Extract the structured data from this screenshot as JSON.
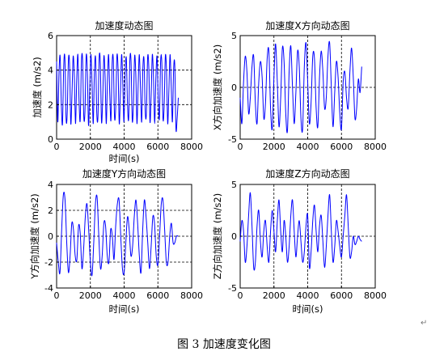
{
  "figure_caption": "图 3  加速度变化图",
  "paragraph_mark": "↵",
  "chart_data": [
    {
      "type": "line",
      "title": "加速度动态图",
      "xlabel": "时间(s)",
      "ylabel": "加速度 (m/s2)",
      "xlim": [
        0,
        8000
      ],
      "ylim": [
        0,
        6
      ],
      "xticks": [
        "0",
        "2000",
        "4000",
        "6000",
        "8000"
      ],
      "yticks": [
        "0",
        "2",
        "4",
        "6"
      ],
      "grid": "dashed, vertical at 2000/4000/6000, horizontal at 2/4",
      "line_color": "#0000ff",
      "series": [
        {
          "x": [
            0,
            70,
            140,
            210,
            280,
            350,
            420,
            490,
            560,
            630,
            700,
            770,
            840,
            910,
            980,
            1050,
            1120,
            1190,
            1260,
            1330,
            1400,
            1470,
            1540,
            1610,
            1680,
            1750,
            1820,
            1890,
            1960,
            2030,
            2100,
            2170,
            2240,
            2310,
            2380,
            2450,
            2520,
            2590,
            2660,
            2730,
            2800,
            2870,
            2940,
            3010,
            3080,
            3150,
            3220,
            3290,
            3360,
            3430,
            3500,
            3570,
            3640,
            3710,
            3780,
            3850,
            3920,
            3990,
            4060,
            4130,
            4200,
            4270,
            4340,
            4410,
            4480,
            4550,
            4620,
            4690,
            4760,
            4830,
            4900,
            4970,
            5040,
            5110,
            5180,
            5250,
            5320,
            5390,
            5460,
            5530,
            5600,
            5670,
            5740,
            5810,
            5880,
            5950,
            6020,
            6090,
            6160,
            6230,
            6300,
            6370,
            6440,
            6510,
            6580,
            6650,
            6720,
            6790,
            6860,
            6930,
            7000,
            7070,
            7140,
            7210
          ],
          "values": [
            4.5,
            1.0,
            3.8,
            4.8,
            2.0,
            0.9,
            4.2,
            4.7,
            1.2,
            1.5,
            4.6,
            4.3,
            0.9,
            2.6,
            4.8,
            3.6,
            0.9,
            3.4,
            4.9,
            2.2,
            1.1,
            4.5,
            4.6,
            1.3,
            1.6,
            4.8,
            4.0,
            0.8,
            2.8,
            4.9,
            3.2,
            0.9,
            3.9,
            4.7,
            1.5,
            1.3,
            4.7,
            4.4,
            1.0,
            2.3,
            4.8,
            3.7,
            0.9,
            3.3,
            4.9,
            2.6,
            1.1,
            4.4,
            4.6,
            1.3,
            1.8,
            4.8,
            4.1,
            0.9,
            2.7,
            4.9,
            3.3,
            1.0,
            3.8,
            4.7,
            2.0,
            1.2,
            4.6,
            4.5,
            1.1,
            2.0,
            4.8,
            3.8,
            0.9,
            3.1,
            4.9,
            2.9,
            1.0,
            4.1,
            4.6,
            1.6,
            1.5,
            4.7,
            4.2,
            1.0,
            2.5,
            4.9,
            3.5,
            0.9,
            3.5,
            4.8,
            2.3,
            1.2,
            4.5,
            4.5,
            1.2,
            1.9,
            4.8,
            4.0,
            0.9,
            2.8,
            4.9,
            3.1,
            1.0,
            4.0,
            4.3,
            0.6,
            1.2,
            2.4
          ]
        }
      ]
    },
    {
      "type": "line",
      "title": "加速度X方向动态图",
      "xlabel": "",
      "ylabel": "X方向加速度 (m/s2)",
      "xlim": [
        0,
        8000
      ],
      "ylim": [
        -5,
        5
      ],
      "xticks": [
        "0",
        "2000",
        "4000",
        "6000",
        "8000"
      ],
      "yticks": [
        "-5",
        "0",
        "5"
      ],
      "grid": "dashed, vertical at 2000/4000/6000, horizontal at 0",
      "line_color": "#0000ff",
      "series": [
        {
          "x": [
            0,
            100,
            200,
            300,
            400,
            500,
            600,
            700,
            800,
            900,
            1000,
            1100,
            1200,
            1300,
            1400,
            1500,
            1600,
            1700,
            1800,
            1900,
            2000,
            2100,
            2200,
            2300,
            2400,
            2500,
            2600,
            2700,
            2800,
            2900,
            3000,
            3100,
            3200,
            3300,
            3400,
            3500,
            3600,
            3700,
            3800,
            3900,
            4000,
            4100,
            4200,
            4300,
            4400,
            4500,
            4600,
            4700,
            4800,
            4900,
            5000,
            5100,
            5200,
            5300,
            5400,
            5500,
            5600,
            5700,
            5800,
            5900,
            6000,
            6100,
            6200,
            6300,
            6400,
            6500,
            6600,
            6700,
            6800,
            6900,
            7000,
            7100,
            7200
          ],
          "values": [
            -1.0,
            -3.5,
            0.5,
            3.0,
            1.5,
            -2.5,
            -1.0,
            2.0,
            3.0,
            -1.5,
            -3.5,
            0.5,
            2.5,
            1.0,
            -3.0,
            -1.5,
            2.8,
            3.5,
            -2.0,
            -4.0,
            1.0,
            4.2,
            0.5,
            -3.8,
            -1.0,
            3.8,
            2.5,
            -2.5,
            -4.2,
            1.5,
            4.0,
            0.0,
            -3.5,
            -0.5,
            3.5,
            2.0,
            -3.0,
            -4.0,
            2.0,
            4.3,
            0.5,
            -3.5,
            -1.5,
            3.0,
            2.8,
            -2.0,
            -3.8,
            1.0,
            3.5,
            1.5,
            -2.0,
            -1.0,
            3.0,
            4.3,
            0.0,
            -3.8,
            -0.5,
            2.5,
            1.0,
            -2.5,
            -4.0,
            0.5,
            1.5,
            -1.0,
            -2.0,
            1.5,
            3.8,
            1.0,
            -3.0,
            -2.0,
            0.8,
            -0.5,
            2.0
          ]
        }
      ]
    },
    {
      "type": "line",
      "title": "加速度Y方向动态图",
      "xlabel": "时间(s)",
      "ylabel": "Y方向加速度 (m/s2)",
      "xlim": [
        0,
        8000
      ],
      "ylim": [
        -4,
        4
      ],
      "xticks": [
        "0",
        "2000",
        "4000",
        "6000",
        "8000"
      ],
      "yticks": [
        "-4",
        "-2",
        "0",
        "2",
        "4"
      ],
      "grid": "dashed, vertical at 2000/4000/6000, horizontal at -2/0/2",
      "line_color": "#0000ff",
      "series": [
        {
          "x": [
            0,
            100,
            200,
            300,
            400,
            500,
            600,
            700,
            800,
            900,
            1000,
            1100,
            1200,
            1300,
            1400,
            1500,
            1600,
            1700,
            1800,
            1900,
            2000,
            2100,
            2200,
            2300,
            2400,
            2500,
            2600,
            2700,
            2800,
            2900,
            3000,
            3100,
            3200,
            3300,
            3400,
            3500,
            3600,
            3700,
            3800,
            3900,
            4000,
            4100,
            4200,
            4300,
            4400,
            4500,
            4600,
            4700,
            4800,
            4900,
            5000,
            5100,
            5200,
            5300,
            5400,
            5500,
            5600,
            5700,
            5800,
            5900,
            6000,
            6100,
            6200,
            6300,
            6400,
            6500,
            6600,
            6700,
            6800,
            6900,
            7000,
            7100,
            7200
          ],
          "values": [
            -0.5,
            -2.0,
            -2.8,
            0.5,
            3.2,
            2.8,
            -0.5,
            -2.8,
            -1.5,
            1.0,
            0.5,
            -1.5,
            -1.8,
            0.8,
            0.2,
            -2.5,
            -1.0,
            1.5,
            2.5,
            0.5,
            -2.0,
            -3.0,
            -0.5,
            2.5,
            3.0,
            0.0,
            -2.5,
            -1.5,
            1.0,
            0.8,
            -1.5,
            -2.0,
            0.5,
            0.0,
            -1.8,
            0.8,
            2.5,
            2.8,
            0.0,
            -2.5,
            -2.8,
            -0.5,
            1.5,
            0.5,
            -1.5,
            -0.8,
            1.5,
            2.8,
            1.0,
            -1.5,
            -2.8,
            0.5,
            2.8,
            1.5,
            -0.5,
            -2.5,
            -0.8,
            1.5,
            1.0,
            -1.5,
            -2.2,
            0.0,
            2.5,
            2.8,
            0.5,
            -2.0,
            -2.0,
            0.0,
            1.0,
            -0.5,
            -0.5,
            0.0,
            0.0
          ]
        }
      ]
    },
    {
      "type": "line",
      "title": "加速度Z方向动态图",
      "xlabel": "时间(s)",
      "ylabel": "Z方向加速度 (m/s2)",
      "xlim": [
        0,
        8000
      ],
      "ylim": [
        -5,
        5
      ],
      "xticks": [
        "0",
        "2000",
        "4000",
        "6000",
        "8000"
      ],
      "yticks": [
        "-5",
        "0",
        "5"
      ],
      "grid": "dashed, vertical at 2000/4000/6000, horizontal at 0",
      "line_color": "#0000ff",
      "series": [
        {
          "x": [
            0,
            100,
            200,
            300,
            400,
            500,
            600,
            700,
            800,
            900,
            1000,
            1100,
            1200,
            1300,
            1400,
            1500,
            1600,
            1700,
            1800,
            1900,
            2000,
            2100,
            2200,
            2300,
            2400,
            2500,
            2600,
            2700,
            2800,
            2900,
            3000,
            3100,
            3200,
            3300,
            3400,
            3500,
            3600,
            3700,
            3800,
            3900,
            4000,
            4100,
            4200,
            4300,
            4400,
            4500,
            4600,
            4700,
            4800,
            4900,
            5000,
            5100,
            5200,
            5300,
            5400,
            5500,
            5600,
            5700,
            5800,
            5900,
            6000,
            6100,
            6200,
            6300,
            6400,
            6500,
            6600,
            6700,
            6800,
            6900,
            7000,
            7100,
            7200
          ],
          "values": [
            -0.5,
            1.5,
            0.5,
            -2.5,
            -1.0,
            2.0,
            4.2,
            1.0,
            -3.0,
            -2.5,
            1.0,
            2.5,
            -0.5,
            -2.0,
            0.5,
            1.5,
            -1.0,
            -2.5,
            0.5,
            2.5,
            0.5,
            -1.5,
            1.5,
            3.5,
            0.5,
            -1.5,
            1.5,
            0.0,
            -2.5,
            -1.0,
            2.0,
            3.5,
            0.5,
            -2.0,
            0.0,
            1.5,
            -0.5,
            -2.5,
            -1.5,
            1.0,
            2.0,
            -3.0,
            -1.5,
            1.5,
            3.0,
            0.5,
            -1.5,
            1.0,
            2.0,
            -0.5,
            -3.0,
            -1.0,
            2.0,
            4.0,
            0.5,
            -2.5,
            -1.0,
            1.5,
            0.5,
            -1.0,
            -2.0,
            0.0,
            2.0,
            4.0,
            1.0,
            -2.0,
            -1.5,
            0.0,
            -0.8,
            -0.5,
            0.0,
            -0.3,
            -0.5
          ]
        }
      ]
    }
  ]
}
